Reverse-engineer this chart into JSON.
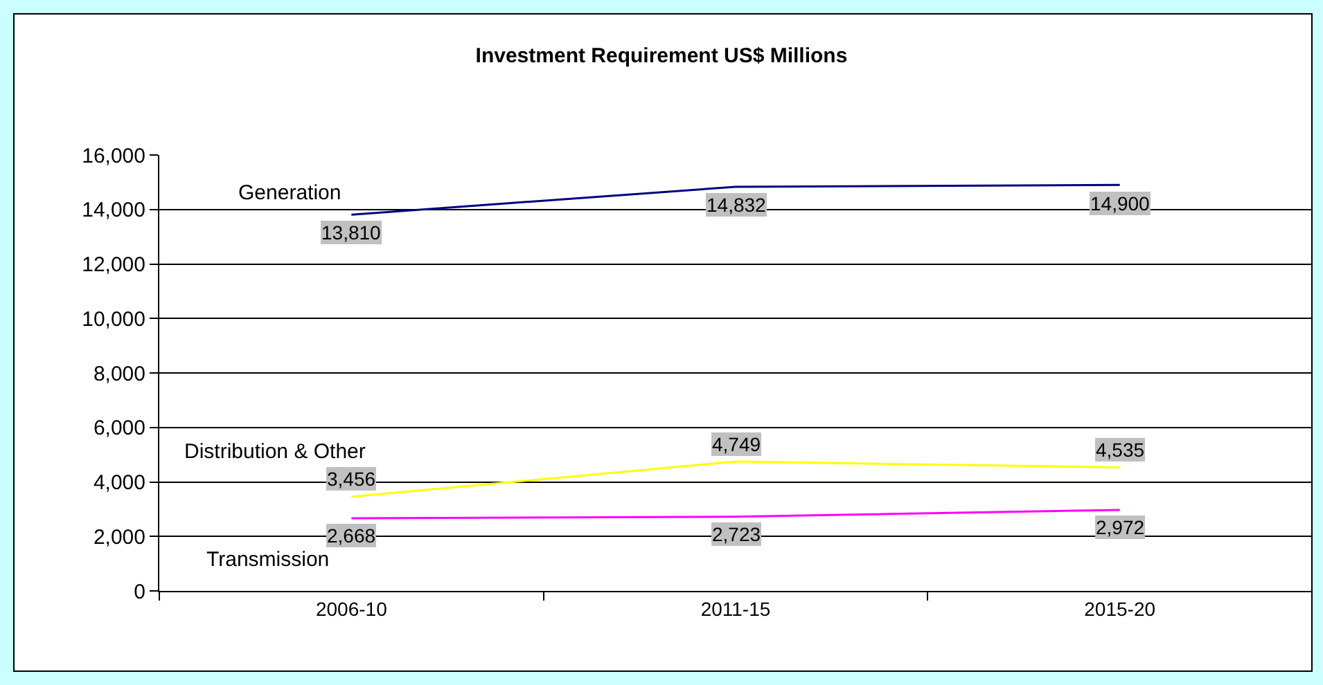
{
  "chart_data": {
    "type": "line",
    "title": "Investment Requirement US$ Millions",
    "categories": [
      "2006-10",
      "2011-15",
      "2015-20"
    ],
    "series": [
      {
        "name": "Generation",
        "color": "#000080",
        "values": [
          13810,
          14832,
          14900
        ],
        "value_labels": [
          "13,810",
          "14,832",
          "14,900"
        ]
      },
      {
        "name": "Distribution & Other",
        "color": "#ffff00",
        "values": [
          3456,
          4749,
          4535
        ],
        "value_labels": [
          "3,456",
          "4,749",
          "4,535"
        ]
      },
      {
        "name": "Transmission",
        "color": "#ff00ff",
        "values": [
          2668,
          2723,
          2972
        ],
        "value_labels": [
          "2,668",
          "2,723",
          "2,972"
        ]
      }
    ],
    "ylim": [
      0,
      16000
    ],
    "yticks": [
      {
        "value": 0,
        "label": "0"
      },
      {
        "value": 2000,
        "label": "2,000"
      },
      {
        "value": 4000,
        "label": "4,000"
      },
      {
        "value": 6000,
        "label": "6,000"
      },
      {
        "value": 8000,
        "label": "8,000"
      },
      {
        "value": 10000,
        "label": "10,000"
      },
      {
        "value": 12000,
        "label": "12,000"
      },
      {
        "value": 14000,
        "label": "14,000"
      },
      {
        "value": 16000,
        "label": "16,000"
      }
    ],
    "grid": "y",
    "legend": false,
    "marker": "none"
  }
}
